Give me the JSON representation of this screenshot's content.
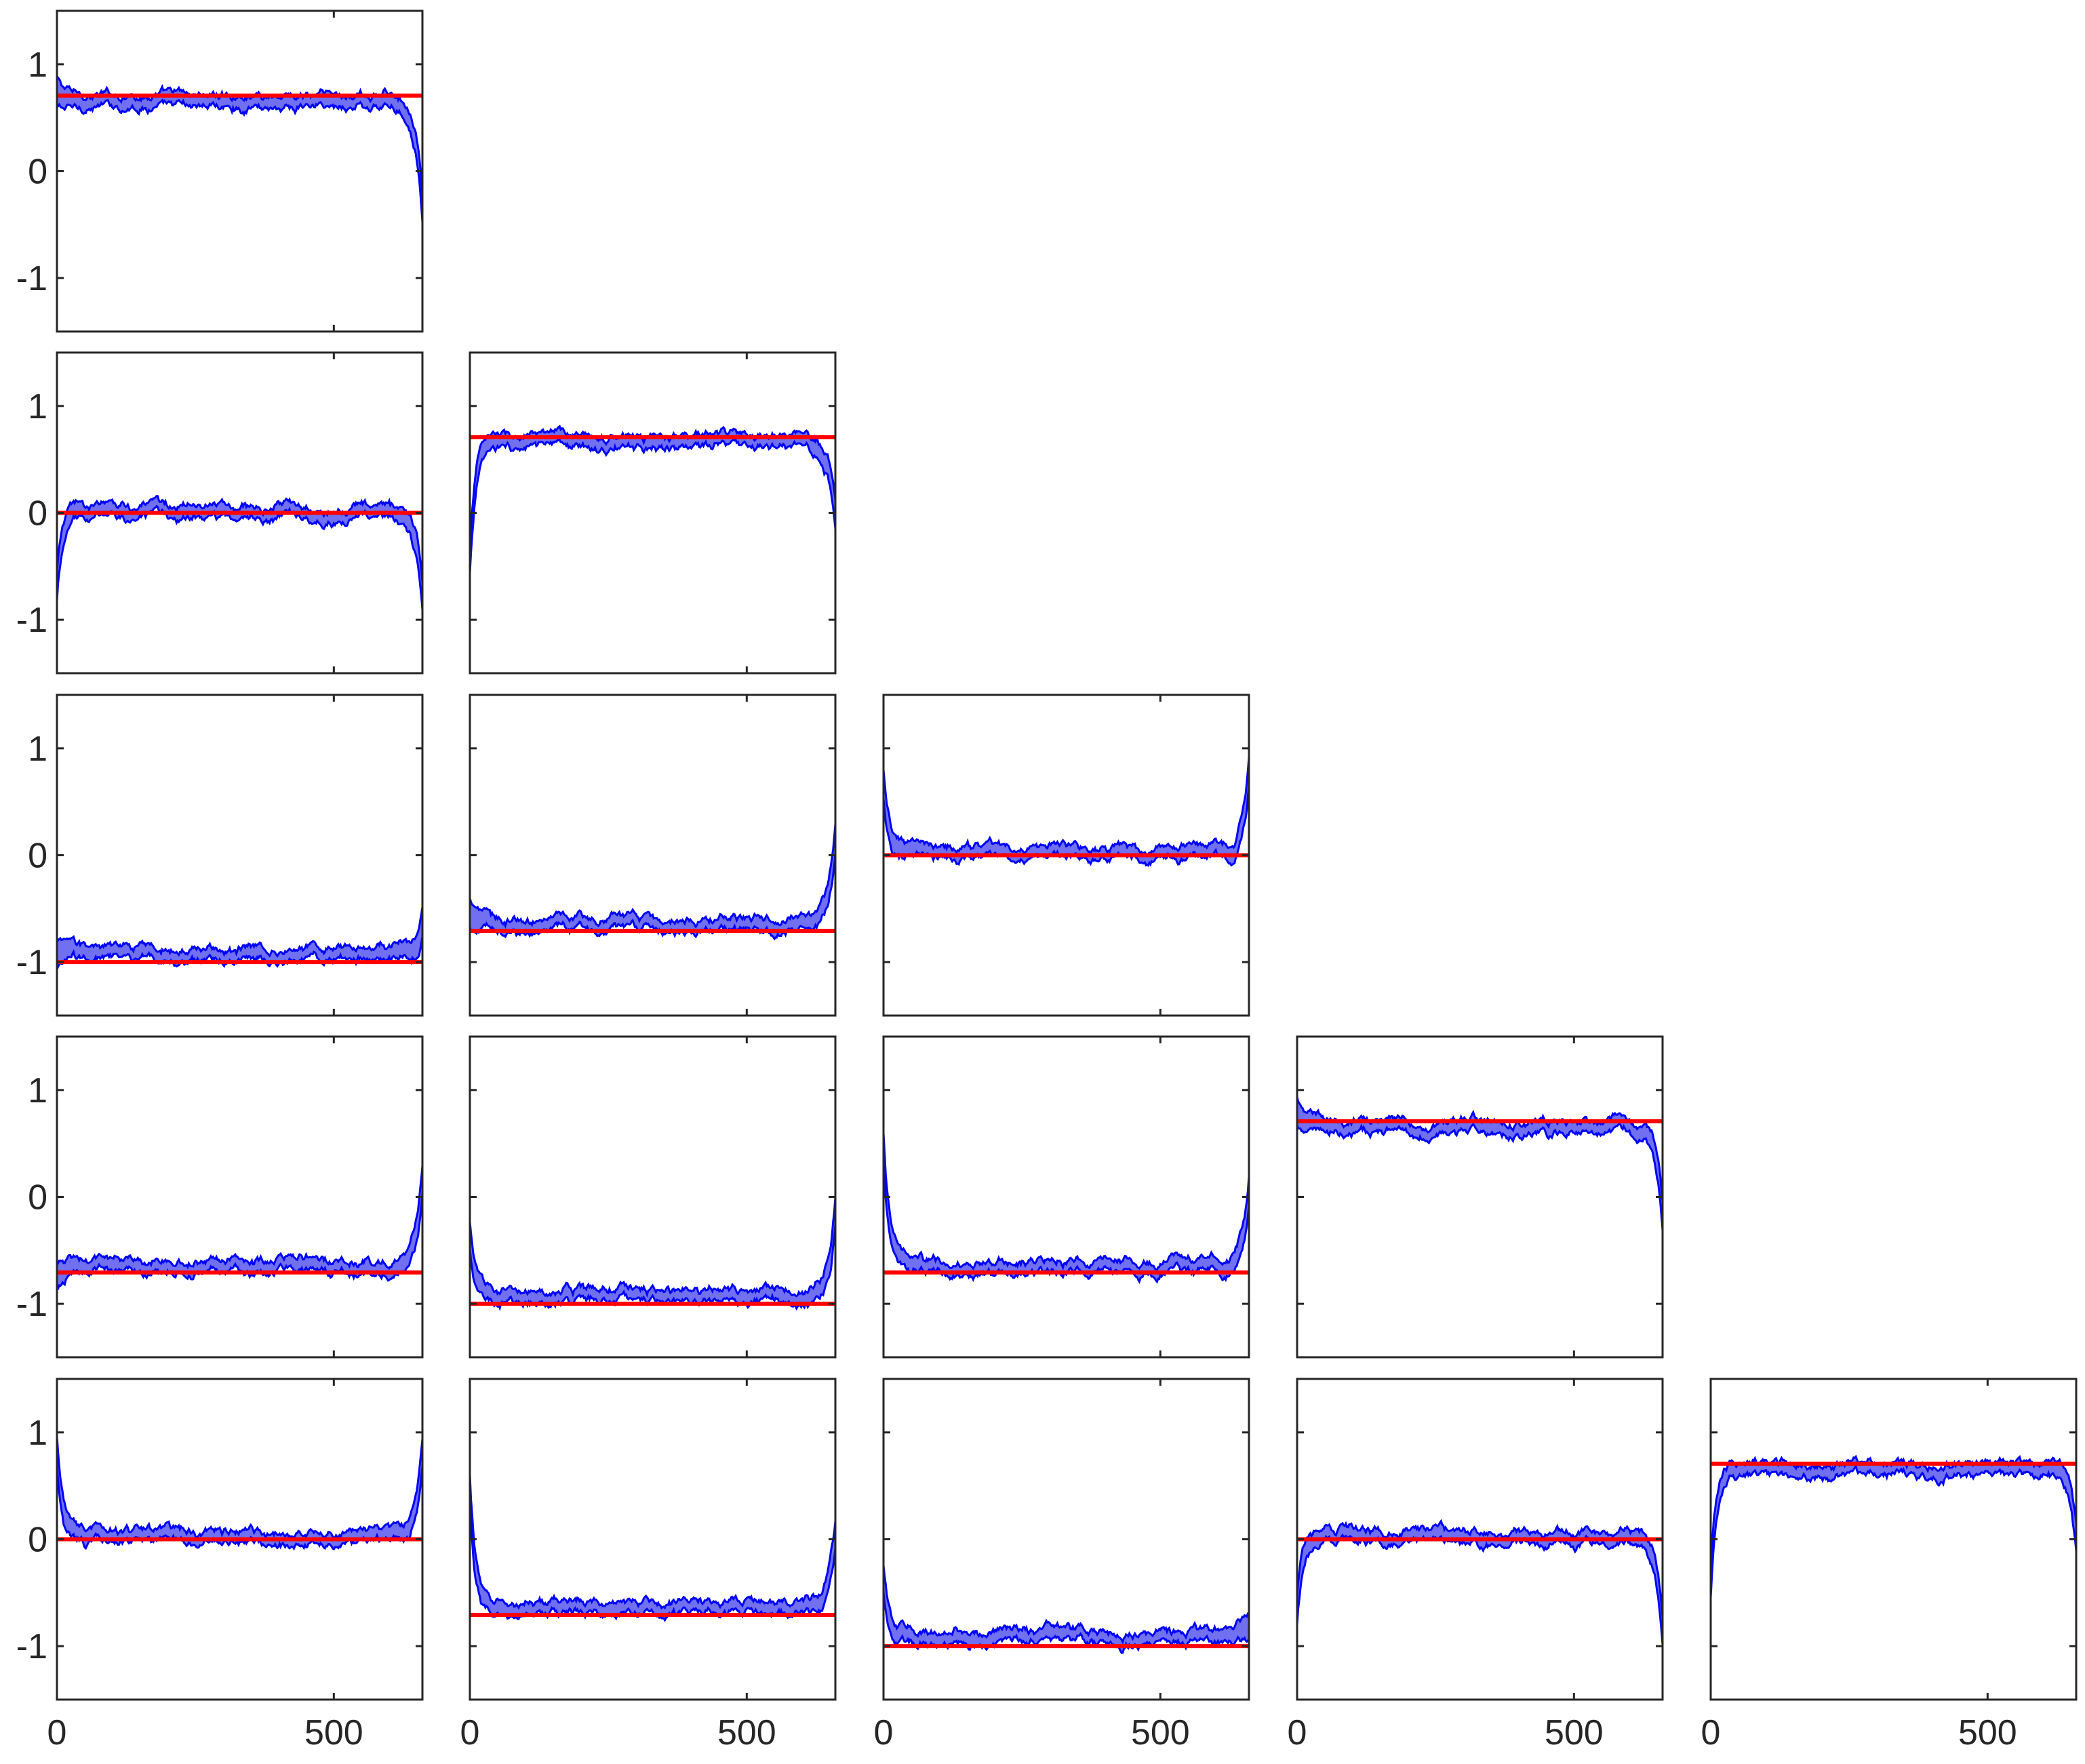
{
  "chart_data": {
    "type": "line",
    "layout": "lower-triangular grid of 5 x 5 panels",
    "xlim": [
      0,
      660
    ],
    "ylim": [
      -1.5,
      1.5
    ],
    "x_ticks": [
      0,
      500
    ],
    "y_ticks": [
      -1,
      0,
      1
    ],
    "x_tick_labels": [
      "0",
      "500"
    ],
    "y_tick_labels": [
      "-1",
      "0",
      "1"
    ],
    "grid": false,
    "legend": "none",
    "colors": {
      "reference_line": "#ff0000",
      "band_edge": "#0000ff",
      "band_fill": "#7070f0"
    },
    "band_half_width": 0.045,
    "panels": [
      {
        "row": 1,
        "col": 1,
        "reference": 0.707,
        "interior": 0.66,
        "start": 0.75,
        "end": -0.28
      },
      {
        "row": 2,
        "col": 1,
        "reference": 0.0,
        "interior": 0.01,
        "start": -0.7,
        "end": -0.8
      },
      {
        "row": 2,
        "col": 2,
        "reference": 0.707,
        "interior": 0.66,
        "start": -0.45,
        "end": 0.0
      },
      {
        "row": 3,
        "col": 1,
        "reference": -1.0,
        "interior": -0.92,
        "start": -0.95,
        "end": -0.62
      },
      {
        "row": 3,
        "col": 2,
        "reference": -0.707,
        "interior": -0.65,
        "start": -0.55,
        "end": 0.2
      },
      {
        "row": 3,
        "col": 3,
        "reference": 0.0,
        "interior": 0.02,
        "start": 0.65,
        "end": 0.8
      },
      {
        "row": 4,
        "col": 1,
        "reference": -0.707,
        "interior": -0.65,
        "start": -0.75,
        "end": 0.15
      },
      {
        "row": 4,
        "col": 2,
        "reference": -1.0,
        "interior": -0.92,
        "start": -0.38,
        "end": -0.1
      },
      {
        "row": 4,
        "col": 3,
        "reference": -0.707,
        "interior": -0.65,
        "start": 0.45,
        "end": 0.05
      },
      {
        "row": 4,
        "col": 4,
        "reference": 0.707,
        "interior": 0.66,
        "start": 0.78,
        "end": -0.2
      },
      {
        "row": 5,
        "col": 1,
        "reference": 0.0,
        "interior": 0.02,
        "start": 0.8,
        "end": 0.8
      },
      {
        "row": 5,
        "col": 2,
        "reference": -0.707,
        "interior": -0.64,
        "start": 0.5,
        "end": 0.05
      },
      {
        "row": 5,
        "col": 3,
        "reference": -1.0,
        "interior": -0.91,
        "start": -0.35,
        "end": -0.85
      },
      {
        "row": 5,
        "col": 4,
        "reference": 0.0,
        "interior": 0.02,
        "start": -0.65,
        "end": -0.85
      },
      {
        "row": 5,
        "col": 5,
        "reference": 0.707,
        "interior": 0.66,
        "start": -0.4,
        "end": -0.05
      }
    ]
  }
}
